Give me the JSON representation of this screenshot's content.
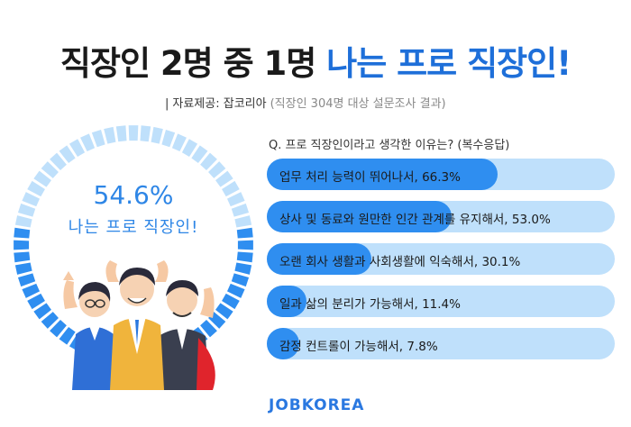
{
  "title": {
    "part1": "직장인 2명 중 1명",
    "part2": "나는 프로 직장인!"
  },
  "source": {
    "label": "자료제공: 잡코리아",
    "note": "(직장인 304명 대상 설문조사 결과)"
  },
  "donut": {
    "percent_text": "54.6%",
    "label": "나는 프로 직장인!"
  },
  "question": "Q. 프로 직장인이라고 생각한 이유는? (복수응답)",
  "logo": "JOBKOREA",
  "colors": {
    "blue": "#2f8ef0",
    "light_blue": "#bfe0fb",
    "title_blue": "#1e6fd9"
  },
  "chart_data": [
    {
      "type": "pie",
      "values": [
        54.6,
        45.4
      ],
      "labels": [
        "나는 프로 직장인!",
        ""
      ],
      "title": "54.6%"
    },
    {
      "type": "bar",
      "orientation": "horizontal",
      "title": "Q. 프로 직장인이라고 생각한 이유는? (복수응답)",
      "categories": [
        "업무 처리 능력이 뛰어나서, 66.3%",
        "상사 및 동료와 원만한 인간 관계를 유지해서, 53.0%",
        "오랜 회사 생활과 사회생활에 익숙해서, 30.1%",
        "일과 삶의 분리가 가능해서, 11.4%",
        "감정 컨트롤이 가능해서, 7.8%"
      ],
      "values": [
        66.3,
        53.0,
        30.1,
        11.4,
        7.8
      ],
      "xlim": [
        0,
        100
      ]
    }
  ]
}
